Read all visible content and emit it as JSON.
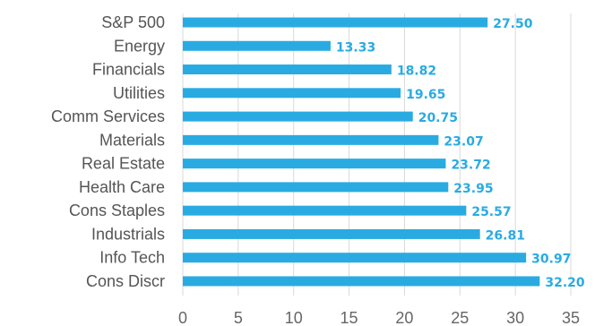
{
  "chart_data": {
    "type": "bar",
    "orientation": "horizontal",
    "categories": [
      "S&P 500",
      "Energy",
      "Financials",
      "Utilities",
      "Comm Services",
      "Materials",
      "Real Estate",
      "Health Care",
      "Cons Staples",
      "Industrials",
      "Info Tech",
      "Cons Discr"
    ],
    "values": [
      27.5,
      13.33,
      18.82,
      19.65,
      20.75,
      23.07,
      23.72,
      23.95,
      25.57,
      26.81,
      30.97,
      32.2
    ],
    "data_labels": [
      "27.50",
      "13.33",
      "18.82",
      "19.65",
      "20.75",
      "23.07",
      "23.72",
      "23.95",
      "25.57",
      "26.81",
      "30.97",
      "32.20"
    ],
    "xticks": [
      "0",
      "5",
      "10",
      "15",
      "20",
      "25",
      "30",
      "35"
    ],
    "xlim": [
      0,
      35
    ],
    "title": "",
    "xlabel": "",
    "ylabel": "",
    "grid": "vertical",
    "legend": "none",
    "bar_color": "#29abe2",
    "label_color": "#29abe2"
  }
}
